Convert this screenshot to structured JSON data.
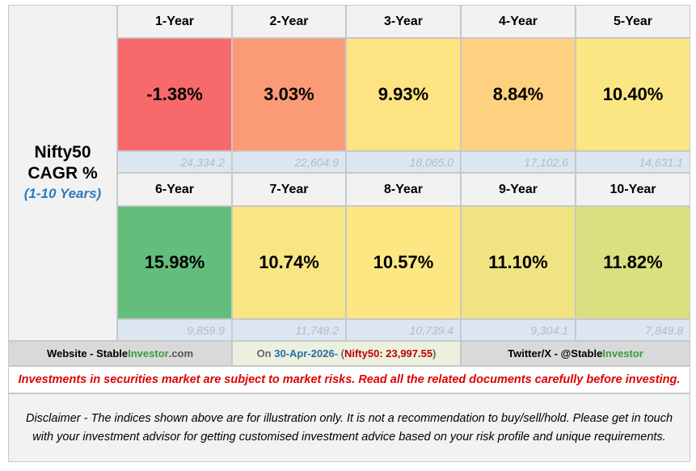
{
  "title": {
    "line1": "Nifty50",
    "line2": "CAGR %",
    "subtitle": "(1-10 Years)"
  },
  "periods": [
    {
      "label": "1-Year",
      "cagr": "-1.38%",
      "index_value": "24,334.2",
      "color": "#f8696b"
    },
    {
      "label": "2-Year",
      "cagr": "3.03%",
      "index_value": "22,604.9",
      "color": "#fb9a76"
    },
    {
      "label": "3-Year",
      "cagr": "9.93%",
      "index_value": "18,065.0",
      "color": "#fee383"
    },
    {
      "label": "4-Year",
      "cagr": "8.84%",
      "index_value": "17,102.6",
      "color": "#fdd17f"
    },
    {
      "label": "5-Year",
      "cagr": "10.40%",
      "index_value": "14,631.1",
      "color": "#fae683"
    },
    {
      "label": "6-Year",
      "cagr": "15.98%",
      "index_value": "9,859.9",
      "color": "#63be7b"
    },
    {
      "label": "7-Year",
      "cagr": "10.74%",
      "index_value": "11,748.2",
      "color": "#f7e683"
    },
    {
      "label": "8-Year",
      "cagr": "10.57%",
      "index_value": "10,739.4",
      "color": "#fde783"
    },
    {
      "label": "9-Year",
      "cagr": "11.10%",
      "index_value": "9,304.1",
      "color": "#f0e482"
    },
    {
      "label": "10-Year",
      "cagr": "11.82%",
      "index_value": "7,849.8",
      "color": "#dadf80"
    }
  ],
  "footer": {
    "website_prefix": "Website - Stable",
    "website_brand": "Investor",
    "website_suffix": ".com",
    "date_prefix": "On",
    "date": "30-Apr-2026",
    "date_sep": " - (",
    "nifty_value": "Nifty50: 23,997.55",
    "date_suffix": ")",
    "twitter_prefix": "Twitter/X - @Stable",
    "twitter_brand": "Investor"
  },
  "warning": "Investments in securities market are subject to market risks. Read all the related documents carefully before investing.",
  "disclaimer": "Disclaimer - The indices shown above are for illustration only. It is not a recommendation to buy/sell/hold. Please get in touch with your investment advisor for getting customised investment advice based on your risk profile and unique requirements.",
  "colors": {
    "footer_mid_bg": "#ebf1de",
    "footer_side_bg": "#d9d9d9",
    "header_bg": "#f2f2f2",
    "index_bg": "#dce6f0"
  }
}
